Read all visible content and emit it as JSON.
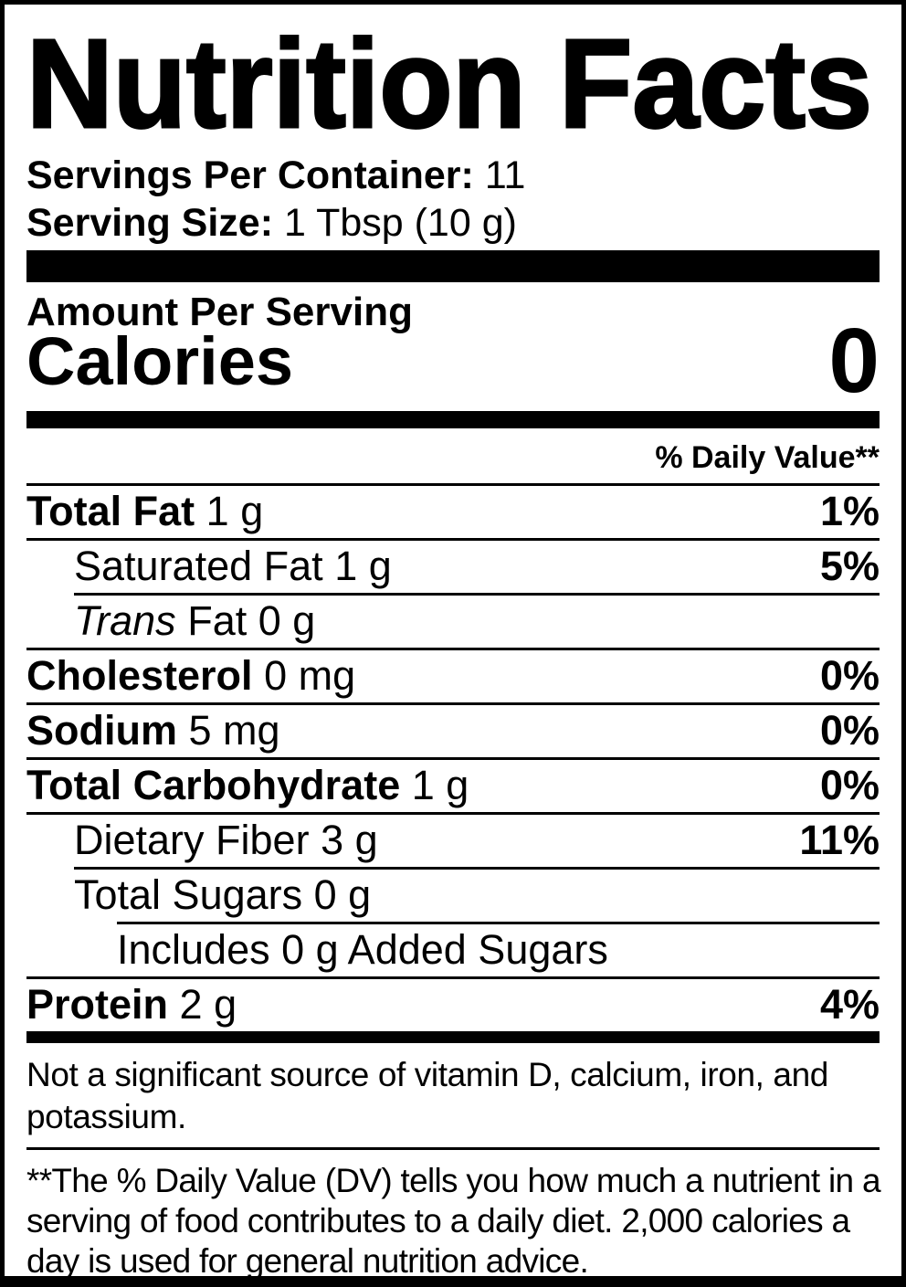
{
  "label": {
    "title": "Nutrition Facts",
    "servings_per_container_label": "Servings Per Container:",
    "servings_per_container_value": "11",
    "serving_size_label": "Serving Size:",
    "serving_size_value": "1 Tbsp (10 g)",
    "amount_per_serving": "Amount Per Serving",
    "calories_label": "Calories",
    "calories_value": "0",
    "daily_value_header": "% Daily Value**",
    "colors": {
      "text": "#000000",
      "background": "#ffffff"
    }
  },
  "nutrients": [
    {
      "name": "Total Fat",
      "amount": "1 g",
      "dv": "1%"
    },
    {
      "name": "Saturated Fat",
      "amount": "1 g",
      "dv": "5%"
    },
    {
      "name_italic": "Trans",
      "name": "Fat",
      "amount": "0 g",
      "dv": ""
    },
    {
      "name": "Cholesterol",
      "amount": "0 mg",
      "dv": "0%"
    },
    {
      "name": "Sodium",
      "amount": "5 mg",
      "dv": "0%"
    },
    {
      "name": "Total Carbohydrate",
      "amount": "1 g",
      "dv": "0%"
    },
    {
      "name": "Dietary Fiber",
      "amount": "3 g",
      "dv": "11%"
    },
    {
      "name": "Total Sugars",
      "amount": "0 g",
      "dv": ""
    },
    {
      "name": "Includes 0 g Added Sugars",
      "amount": "",
      "dv": ""
    },
    {
      "name": "Protein",
      "amount": "2 g",
      "dv": "4%"
    }
  ],
  "footnotes": {
    "not_significant_lines": [
      "Not a significant source of vitamin D, calcium, iron, and",
      "potassium."
    ],
    "daily_value_lines": [
      "**The % Daily Value (DV) tells you how much a nutrient in a",
      "serving of food contributes to a daily diet. 2,000 calories a",
      "day is used for general nutrition advice."
    ]
  }
}
